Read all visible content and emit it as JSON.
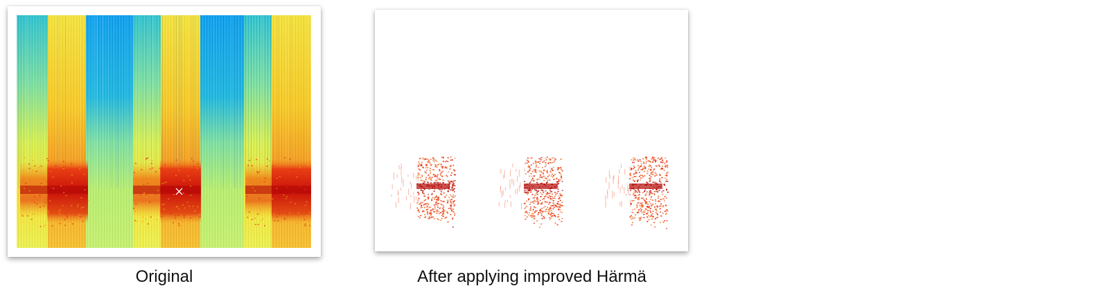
{
  "panels": [
    {
      "caption": "Original",
      "image": "spectrogram-original"
    },
    {
      "caption": "After applying improved Härmä",
      "image": "spectrogram-filtered"
    }
  ],
  "colors": {
    "background": "#ffffff",
    "spectrogram_low": "#1aa6e8",
    "spectrogram_mid": "#f2e020",
    "spectrogram_high": "#d81a0a",
    "marker": "#ffffff"
  }
}
